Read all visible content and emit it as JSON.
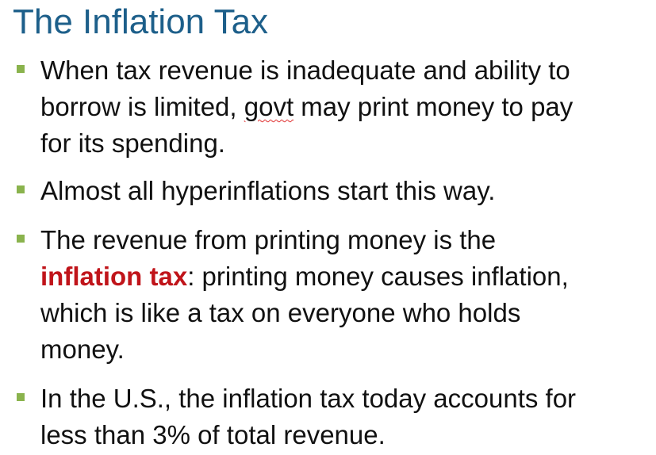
{
  "slide": {
    "title": "The Inflation Tax"
  },
  "colors": {
    "title": "#1d5f8a",
    "bullet": "#8ab34d",
    "emphasis": "#c0141a",
    "text": "#111111"
  },
  "bullets": [
    {
      "lines": [
        "When tax revenue is inadequate and ability to",
        "borrow is limited,",
        "govt",
        " may print money to pay",
        "for its spending."
      ]
    },
    {
      "lines": [
        "Almost all hyperinflations start this way."
      ]
    },
    {
      "lines": [
        "The revenue from printing money is the",
        "inflation tax",
        ":  printing money causes inflation,",
        "which is like a tax on everyone who holds",
        "money."
      ]
    },
    {
      "lines": [
        "In the U.S., the inflation tax today accounts for",
        "less than 3% of total revenue."
      ]
    }
  ]
}
